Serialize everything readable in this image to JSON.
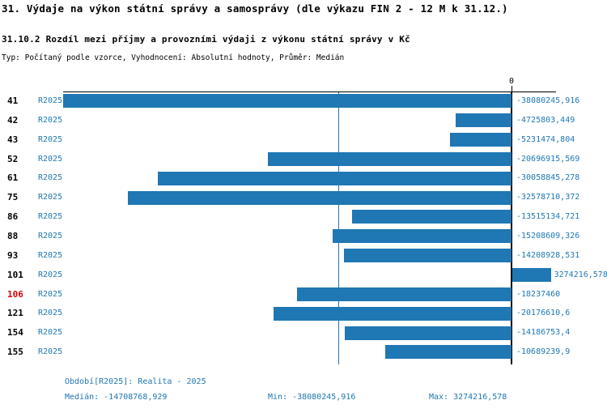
{
  "header": {
    "title": "31. Výdaje na výkon státní správy a samosprávy (dle výkazu FIN 2 - 12 M k 31.12.)",
    "subtitle": "31.10.2 Rozdíl mezi příjmy a provozními výdaji z výkonu státní správy v Kč",
    "type_line": "Typ: Počítaný podle vzorce, Vyhodnocení: Absolutní hodnoty, Průměr: Medián"
  },
  "colors": {
    "bar": "#1f77b4",
    "accent_text": "#1f77b4",
    "median_line": "#1f77b4",
    "highlight_row": "#dd0000",
    "axis": "#000000"
  },
  "chart_data": {
    "type": "bar",
    "orientation": "horizontal",
    "series_label": "R2025",
    "zero_tick_label": "0",
    "categories": [
      "41",
      "42",
      "43",
      "52",
      "61",
      "75",
      "86",
      "88",
      "93",
      "101",
      "106",
      "121",
      "154",
      "155"
    ],
    "highlighted_category": "106",
    "values": [
      -38080245.916,
      -4725803.449,
      -5231474.804,
      -20696915.569,
      -30058845.278,
      -32578710.372,
      -13515134.721,
      -15208609.326,
      -14208928.531,
      3274216.578,
      -18237460,
      -20176610.6,
      -14186753.4,
      -10689239.9
    ],
    "value_labels": [
      "-38080245,916",
      "-4725803,449",
      "-5231474,804",
      "-20696915,569",
      "-30058845,278",
      "-32578710,372",
      "-13515134,721",
      "-15208609,326",
      "-14208928,531",
      "3274216,578",
      "-18237460",
      "-20176610,6",
      "-14186753,4",
      "-10689239,9"
    ],
    "median": -14708768.929,
    "min": -38080245.916,
    "max": 3274216.578,
    "xlim": [
      -38080245.916,
      3274216.578
    ],
    "grid": false,
    "legend": "none"
  },
  "footer": {
    "period_label": "Období[R2025]: Realita - 2025",
    "median_label": "Medián: -14708768,929",
    "min_label": "Min: -38080245,916",
    "max_label": "Max: 3274216,578"
  }
}
